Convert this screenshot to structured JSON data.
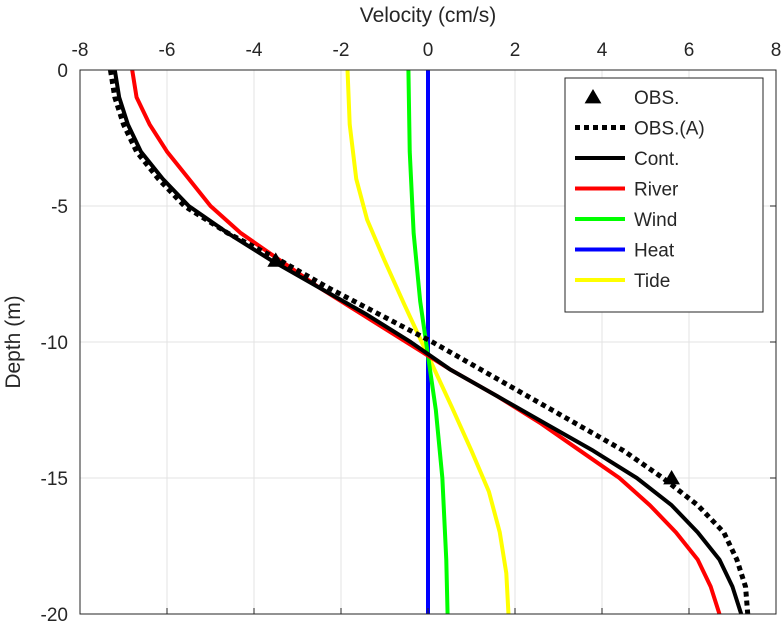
{
  "chart_data": {
    "type": "line",
    "xlabel": "Velocity (cm/s)",
    "ylabel": "Depth (m)",
    "xlim": [
      -8,
      8
    ],
    "ylim": [
      -20,
      0
    ],
    "xticks": [
      -8,
      -6,
      -4,
      -2,
      0,
      2,
      4,
      6,
      8
    ],
    "yticks": [
      0,
      -5,
      -10,
      -15,
      -20
    ],
    "grid": true,
    "legend_position": "top-right",
    "series": [
      {
        "name": "OBS.",
        "style": "marker-triangle",
        "color": "#000000",
        "points": [
          [
            -3.5,
            -7
          ],
          [
            5.6,
            -15
          ]
        ]
      },
      {
        "name": "OBS.(A)",
        "style": "dotted",
        "color": "#000000",
        "points": [
          [
            -7.3,
            0
          ],
          [
            -7.2,
            -1
          ],
          [
            -7.0,
            -2
          ],
          [
            -6.7,
            -3
          ],
          [
            -6.2,
            -4
          ],
          [
            -5.6,
            -5
          ],
          [
            -4.6,
            -6
          ],
          [
            -3.4,
            -7
          ],
          [
            -2.3,
            -8
          ],
          [
            -1.1,
            -9
          ],
          [
            0.1,
            -10
          ],
          [
            1.2,
            -11
          ],
          [
            2.3,
            -12
          ],
          [
            3.4,
            -13
          ],
          [
            4.5,
            -14
          ],
          [
            5.4,
            -15
          ],
          [
            6.2,
            -16
          ],
          [
            6.8,
            -17
          ],
          [
            7.1,
            -18
          ],
          [
            7.3,
            -19
          ],
          [
            7.35,
            -20
          ]
        ]
      },
      {
        "name": "Cont.",
        "style": "solid",
        "color": "#000000",
        "points": [
          [
            -7.2,
            0
          ],
          [
            -7.1,
            -1
          ],
          [
            -6.9,
            -2
          ],
          [
            -6.6,
            -3
          ],
          [
            -6.1,
            -4
          ],
          [
            -5.5,
            -5
          ],
          [
            -4.6,
            -6
          ],
          [
            -3.6,
            -7
          ],
          [
            -2.5,
            -8
          ],
          [
            -1.4,
            -9
          ],
          [
            -0.4,
            -10
          ],
          [
            0.5,
            -11
          ],
          [
            1.6,
            -12
          ],
          [
            2.7,
            -13
          ],
          [
            3.8,
            -14
          ],
          [
            4.8,
            -15
          ],
          [
            5.6,
            -16
          ],
          [
            6.2,
            -17
          ],
          [
            6.7,
            -18
          ],
          [
            7.0,
            -19
          ],
          [
            7.2,
            -20
          ]
        ]
      },
      {
        "name": "River",
        "style": "solid",
        "color": "#ff0000",
        "points": [
          [
            -6.8,
            0
          ],
          [
            -6.7,
            -1
          ],
          [
            -6.4,
            -2
          ],
          [
            -6.0,
            -3
          ],
          [
            -5.5,
            -4
          ],
          [
            -5.0,
            -5
          ],
          [
            -4.3,
            -6
          ],
          [
            -3.4,
            -7
          ],
          [
            -2.5,
            -8
          ],
          [
            -1.5,
            -9
          ],
          [
            -0.5,
            -10
          ],
          [
            0.5,
            -11
          ],
          [
            1.6,
            -12
          ],
          [
            2.6,
            -13
          ],
          [
            3.5,
            -14
          ],
          [
            4.4,
            -15
          ],
          [
            5.1,
            -16
          ],
          [
            5.7,
            -17
          ],
          [
            6.2,
            -18
          ],
          [
            6.5,
            -19
          ],
          [
            6.7,
            -20
          ]
        ]
      },
      {
        "name": "Wind",
        "style": "solid",
        "color": "#00ff00",
        "points": [
          [
            -0.45,
            0
          ],
          [
            -0.42,
            -3
          ],
          [
            -0.33,
            -6
          ],
          [
            -0.18,
            -8.5
          ],
          [
            0,
            -10.5
          ],
          [
            0.18,
            -12.5
          ],
          [
            0.33,
            -15
          ],
          [
            0.42,
            -18
          ],
          [
            0.45,
            -20
          ]
        ]
      },
      {
        "name": "Heat",
        "style": "solid",
        "color": "#0000ff",
        "points": [
          [
            0,
            0
          ],
          [
            0,
            -20
          ]
        ]
      },
      {
        "name": "Tide",
        "style": "solid",
        "color": "#ffff00",
        "points": [
          [
            -1.85,
            0
          ],
          [
            -1.8,
            -2
          ],
          [
            -1.65,
            -4
          ],
          [
            -1.4,
            -5.5
          ],
          [
            -1.0,
            -7
          ],
          [
            -0.55,
            -8.6
          ],
          [
            0,
            -10.5
          ],
          [
            0.55,
            -12.4
          ],
          [
            1.0,
            -14
          ],
          [
            1.4,
            -15.5
          ],
          [
            1.65,
            -17
          ],
          [
            1.8,
            -18.5
          ],
          [
            1.85,
            -20
          ]
        ]
      }
    ]
  }
}
